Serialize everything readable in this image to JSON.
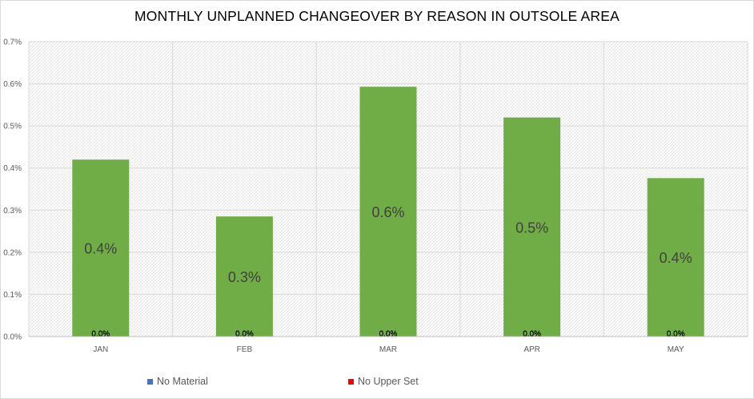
{
  "chart_data": {
    "type": "bar",
    "title": "MONTHLY UNPLANNED CHANGEOVER BY REASON IN OUTSOLE AREA",
    "categories": [
      "JAN",
      "FEB",
      "MAR",
      "APR",
      "MAY"
    ],
    "values": [
      0.0042,
      0.00285,
      0.00593,
      0.0052,
      0.00376
    ],
    "value_labels": [
      "0.4%",
      "0.3%",
      "0.6%",
      "0.5%",
      "0.4%"
    ],
    "series": [
      {
        "name": "No Material",
        "values": [
          0,
          0,
          0,
          0,
          0
        ],
        "labels": [
          "0.0%",
          "0.0%",
          "0.0%",
          "0.0%",
          "0.0%"
        ]
      },
      {
        "name": "No Upper Set",
        "values": [
          0,
          0,
          0,
          0,
          0
        ],
        "labels": [
          "0.0%",
          "0.0%",
          "0.0%",
          "0.0%",
          "0.0%"
        ]
      }
    ],
    "ylim": [
      0,
      0.007
    ],
    "yticks": [
      "0.0%",
      "0.1%",
      "0.2%",
      "0.3%",
      "0.4%",
      "0.5%",
      "0.6%",
      "0.7%"
    ],
    "xlabel": "",
    "ylabel": "",
    "grid": true,
    "legend_placement": "bottom",
    "colors": {
      "bar": "#70ad47",
      "no_material": "#4472c4",
      "no_upper_set": "#ff0000",
      "grid": "#d9d9d9"
    }
  }
}
